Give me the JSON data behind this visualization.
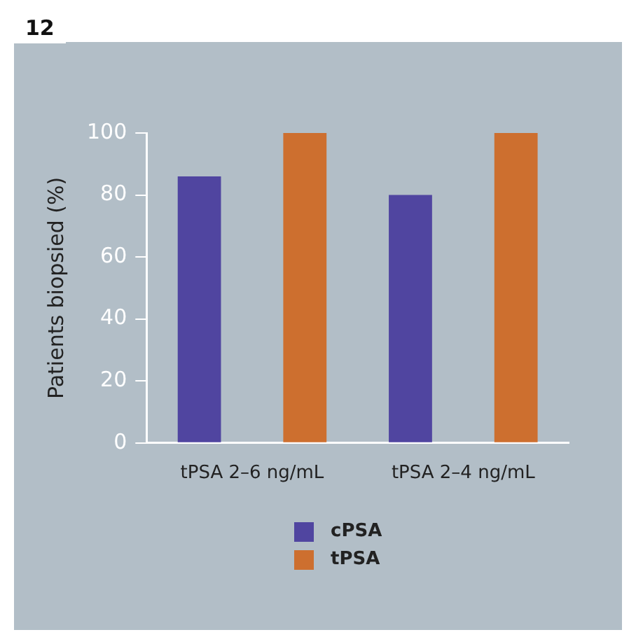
{
  "chart_data": {
    "type": "bar",
    "categories": [
      "tPSA 2–6 ng/mL",
      "tPSA 2–4 ng/mL"
    ],
    "ylabel": "Patients biopsied (%)",
    "annotations": [
      "12"
    ],
    "series": [
      {
        "name": "cPSA",
        "color": "#5045a0",
        "values": [
          86,
          80
        ]
      },
      {
        "name": "tPSA",
        "color": "#cd6f2f",
        "values": [
          100,
          100
        ]
      }
    ],
    "ylim": [
      0,
      100
    ],
    "yticks": [
      0,
      20,
      40,
      60,
      80,
      100
    ],
    "grid": false,
    "legend": "bottom"
  }
}
